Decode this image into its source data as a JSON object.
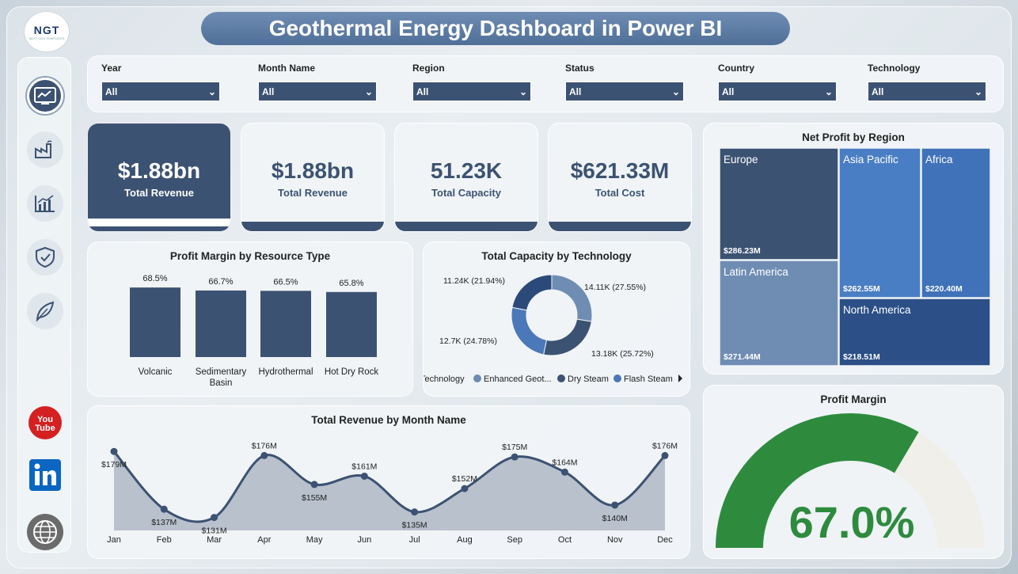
{
  "header": {
    "title": "Geothermal Energy Dashboard in Power BI",
    "logo_text": "NGT",
    "logo_subtext": "NEXT GEN TEMPLATES"
  },
  "sidebar": {
    "items": [
      {
        "icon": "dashboard-icon",
        "active": true
      },
      {
        "icon": "factory-icon",
        "active": false
      },
      {
        "icon": "bar-chart-icon",
        "active": false
      },
      {
        "icon": "shield-check-icon",
        "active": false
      },
      {
        "icon": "leaf-icon",
        "active": false
      },
      {
        "icon": "youtube-icon",
        "active": false
      },
      {
        "icon": "linkedin-icon",
        "active": false
      },
      {
        "icon": "globe-icon",
        "active": false
      }
    ]
  },
  "slicers": [
    {
      "label": "Year",
      "value": "All"
    },
    {
      "label": "Month Name",
      "value": "All"
    },
    {
      "label": "Region",
      "value": "All"
    },
    {
      "label": "Status",
      "value": "All"
    },
    {
      "label": "Country",
      "value": "All"
    },
    {
      "label": "Technology",
      "value": "All"
    }
  ],
  "kpis": [
    {
      "value": "$1.88bn",
      "label": "Total Revenue"
    },
    {
      "value": "$1.88bn",
      "label": "Total Revenue"
    },
    {
      "value": "51.23K",
      "label": "Total Capacity"
    },
    {
      "value": "$621.33M",
      "label": "Total Cost"
    }
  ],
  "colors": {
    "primary": "#3c5272",
    "accent_green": "#2e8b3e",
    "gauge_bg": "#f1efea"
  },
  "chart_data": [
    {
      "type": "bar",
      "title": "Profit Margin by Resource Type",
      "categories": [
        "Volcanic",
        "Sedimentary Basin",
        "Hydrothermal",
        "Hot Dry Rock"
      ],
      "values": [
        68.5,
        66.7,
        66.5,
        65.8
      ],
      "value_labels": [
        "68.5%",
        "66.7%",
        "66.5%",
        "65.8%"
      ],
      "unit": "%"
    },
    {
      "type": "pie",
      "title": "Total Capacity by Technology",
      "donut": true,
      "slices": [
        {
          "name": "Enhanced Geot...",
          "value": 14.11,
          "label": "14.11K (27.55%)",
          "color": "#6f8db3"
        },
        {
          "name": "Dry Steam",
          "value": 13.18,
          "label": "13.18K (25.72%)",
          "color": "#3c5272"
        },
        {
          "name": "Flash Steam",
          "value": 12.7,
          "label": "12.7K (24.78%)",
          "color": "#4a78b8"
        },
        {
          "name": "",
          "value": 11.24,
          "label": "11.24K (21.94%)",
          "color": "#2b4a7a"
        }
      ],
      "legend_title": "Technology",
      "legend_entries": [
        "Enhanced Geot...",
        "Dry Steam",
        "Flash Steam"
      ],
      "legend_placement": "bottom"
    },
    {
      "type": "treemap",
      "title": "Net Profit by Region",
      "items": [
        {
          "name": "Europe",
          "value": 286.23,
          "label": "$286.23M",
          "color": "#3c5272"
        },
        {
          "name": "Latin America",
          "value": 271.44,
          "label": "$271.44M",
          "color": "#6f8db3"
        },
        {
          "name": "Asia Pacific",
          "value": 262.55,
          "label": "$262.55M",
          "color": "#4a7ec4"
        },
        {
          "name": "Africa",
          "value": 220.4,
          "label": "$220.40M",
          "color": "#3f72b8"
        },
        {
          "name": "North America",
          "value": 218.51,
          "label": "$218.51M",
          "color": "#2b4f86"
        }
      ]
    },
    {
      "type": "area",
      "title": "Total Revenue by Month Name",
      "categories": [
        "Jan",
        "Feb",
        "Mar",
        "Apr",
        "May",
        "Jun",
        "Jul",
        "Aug",
        "Sep",
        "Oct",
        "Nov",
        "Dec"
      ],
      "values": [
        179,
        137,
        131,
        176,
        155,
        161,
        135,
        152,
        175,
        164,
        140,
        176
      ],
      "value_labels": [
        "$179M",
        "$137M",
        "$131M",
        "$176M",
        "$155M",
        "$161M",
        "$135M",
        "$152M",
        "$175M",
        "$164M",
        "$140M",
        "$176M"
      ],
      "unit": "$M"
    },
    {
      "type": "gauge",
      "title": "Profit Margin",
      "value": 67.0,
      "min": 0,
      "max": 100,
      "value_label": "67.0%"
    }
  ]
}
